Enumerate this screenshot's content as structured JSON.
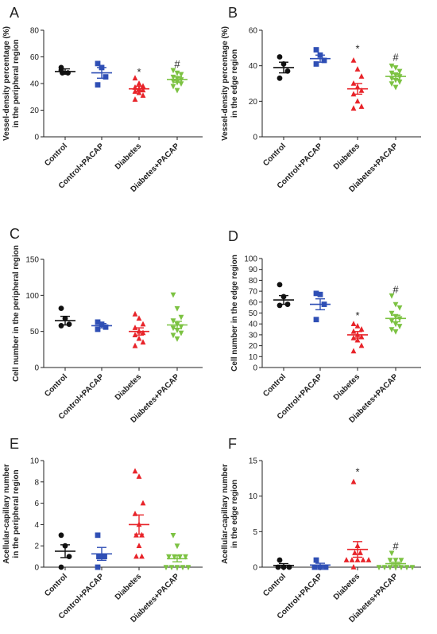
{
  "colors": {
    "Control": "#111111",
    "Control+PACAP": "#2f4fb5",
    "Diabetes": "#e8242a",
    "Diabetes+PACAP": "#7cc242"
  },
  "chart_data": [
    {
      "panel": "A",
      "type": "scatter",
      "categories": [
        "Control",
        "Control+PACAP",
        "Diabetes",
        "Diabetes+PACAP"
      ],
      "ylabel_lines": [
        "Vessel-density percentage (%)",
        "in the peripheral region"
      ],
      "ylim": [
        0,
        80
      ],
      "yticks": [
        0,
        20,
        40,
        60,
        80
      ],
      "groups": [
        {
          "name": "Control",
          "marker": "circle",
          "mean": 49,
          "sem": 2,
          "values": [
            52,
            48,
            48,
            50
          ]
        },
        {
          "name": "Control+PACAP",
          "marker": "square",
          "mean": 48,
          "sem": 4,
          "values": [
            55,
            52,
            45,
            39
          ]
        },
        {
          "name": "Diabetes",
          "marker": "triangle-up",
          "mean": 36,
          "sem": 2,
          "values": [
            44,
            40,
            38,
            37,
            36,
            35,
            34,
            33,
            31,
            28
          ]
        },
        {
          "name": "Diabetes+PACAP",
          "marker": "triangle-down",
          "mean": 43,
          "sem": 2,
          "values": [
            50,
            48,
            47,
            45,
            44,
            43,
            42,
            41,
            40,
            38,
            35
          ]
        }
      ],
      "annotations": [
        {
          "group": "Diabetes",
          "text": "*",
          "y": 49
        },
        {
          "group": "Diabetes+PACAP",
          "text": "#",
          "y": 55
        }
      ]
    },
    {
      "panel": "B",
      "type": "scatter",
      "categories": [
        "Control",
        "Control+PACAP",
        "Diabetes",
        "Diabetes+PACAP"
      ],
      "ylabel_lines": [
        "Vessel-density percentage (%)",
        "in the edge region"
      ],
      "ylim": [
        0,
        60
      ],
      "yticks": [
        0,
        20,
        40,
        60
      ],
      "groups": [
        {
          "name": "Control",
          "marker": "circle",
          "mean": 39,
          "sem": 3,
          "values": [
            45,
            41,
            37,
            33
          ]
        },
        {
          "name": "Control+PACAP",
          "marker": "square",
          "mean": 44,
          "sem": 2,
          "values": [
            49,
            46,
            43,
            41
          ]
        },
        {
          "name": "Diabetes",
          "marker": "triangle-up",
          "mean": 27,
          "sem": 3,
          "values": [
            43,
            38,
            34,
            30,
            28,
            26,
            24,
            20,
            17,
            16
          ]
        },
        {
          "name": "Diabetes+PACAP",
          "marker": "triangle-down",
          "mean": 34,
          "sem": 1.5,
          "values": [
            40,
            39,
            37,
            36,
            35,
            34,
            33,
            32,
            31,
            30,
            28
          ]
        }
      ],
      "annotations": [
        {
          "group": "Diabetes",
          "text": "*",
          "y": 50
        },
        {
          "group": "Diabetes+PACAP",
          "text": "#",
          "y": 45
        }
      ]
    },
    {
      "panel": "C",
      "type": "scatter",
      "categories": [
        "Control",
        "Control+PACAP",
        "Diabetes",
        "Diabetes+PACAP"
      ],
      "ylabel_lines": [
        "Cell number  in the peripheral region"
      ],
      "ylim": [
        0,
        150
      ],
      "yticks": [
        0,
        50,
        100,
        150
      ],
      "groups": [
        {
          "name": "Control",
          "marker": "circle",
          "mean": 65,
          "sem": 6,
          "values": [
            82,
            68,
            60,
            58
          ]
        },
        {
          "name": "Control+PACAP",
          "marker": "square",
          "mean": 58,
          "sem": 3,
          "values": [
            63,
            60,
            56,
            53
          ]
        },
        {
          "name": "Diabetes",
          "marker": "triangle-up",
          "mean": 50,
          "sem": 5,
          "values": [
            74,
            68,
            60,
            55,
            50,
            48,
            45,
            40,
            35,
            30
          ]
        },
        {
          "name": "Diabetes+PACAP",
          "marker": "triangle-down",
          "mean": 59,
          "sem": 5,
          "values": [
            101,
            82,
            70,
            65,
            60,
            57,
            55,
            52,
            48,
            45,
            40
          ]
        }
      ],
      "annotations": []
    },
    {
      "panel": "D",
      "type": "scatter",
      "categories": [
        "Control",
        "Control+PACAP",
        "Diabetes",
        "Diabetes+PACAP"
      ],
      "ylabel_lines": [
        "Cell number  in the edge region"
      ],
      "ylim": [
        0,
        100
      ],
      "yticks": [
        0,
        10,
        20,
        30,
        40,
        50,
        60,
        70,
        80,
        90,
        100
      ],
      "groups": [
        {
          "name": "Control",
          "marker": "circle",
          "mean": 62,
          "sem": 4,
          "values": [
            76,
            65,
            58,
            57
          ]
        },
        {
          "name": "Control+PACAP",
          "marker": "square",
          "mean": 58,
          "sem": 5,
          "values": [
            68,
            67,
            58,
            44
          ]
        },
        {
          "name": "Diabetes",
          "marker": "triangle-up",
          "mean": 30,
          "sem": 3,
          "values": [
            40,
            38,
            35,
            33,
            30,
            28,
            27,
            25,
            20,
            15
          ]
        },
        {
          "name": "Diabetes+PACAP",
          "marker": "triangle-down",
          "mean": 45,
          "sem": 3,
          "values": [
            66,
            58,
            55,
            50,
            47,
            45,
            43,
            40,
            38,
            35,
            33
          ]
        }
      ],
      "annotations": [
        {
          "group": "Diabetes",
          "text": "*",
          "y": 48
        },
        {
          "group": "Diabetes+PACAP",
          "text": "#",
          "y": 72
        }
      ]
    },
    {
      "panel": "E",
      "type": "scatter",
      "categories": [
        "Control",
        "Control+PACAP",
        "Diabetes",
        "Diabetes+PACAP"
      ],
      "ylabel_lines": [
        "Acellular-capillary number",
        "in the peripheral region"
      ],
      "ylim": [
        0,
        10
      ],
      "yticks": [
        0,
        2,
        4,
        6,
        8,
        10
      ],
      "groups": [
        {
          "name": "Control",
          "marker": "circle",
          "mean": 1.5,
          "sem": 0.6,
          "values": [
            3,
            2,
            1,
            0
          ]
        },
        {
          "name": "Control+PACAP",
          "marker": "square",
          "mean": 1.25,
          "sem": 0.6,
          "values": [
            3,
            1,
            1,
            0
          ]
        },
        {
          "name": "Diabetes",
          "marker": "triangle-up",
          "mean": 4,
          "sem": 0.9,
          "values": [
            9,
            8.5,
            6,
            5,
            4,
            3,
            3,
            2,
            1,
            1
          ]
        },
        {
          "name": "Diabetes+PACAP",
          "marker": "triangle-down",
          "mean": 0.8,
          "sem": 0.3,
          "values": [
            3,
            2,
            1,
            1,
            1,
            1,
            0,
            0,
            0,
            0,
            0
          ]
        }
      ],
      "annotations": []
    },
    {
      "panel": "F",
      "type": "scatter",
      "categories": [
        "Control",
        "Control+PACAP",
        "Diabetes",
        "Diabetes+PACAP"
      ],
      "ylabel_lines": [
        "Acellular-capillary number",
        "in the edge region"
      ],
      "ylim": [
        0,
        15
      ],
      "yticks": [
        0,
        5,
        10,
        15
      ],
      "groups": [
        {
          "name": "Control",
          "marker": "circle",
          "mean": 0.25,
          "sem": 0.25,
          "values": [
            1,
            0,
            0,
            0
          ]
        },
        {
          "name": "Control+PACAP",
          "marker": "square",
          "mean": 0.3,
          "sem": 0.25,
          "values": [
            1,
            0,
            0,
            0
          ]
        },
        {
          "name": "Diabetes",
          "marker": "triangle-up",
          "mean": 2.5,
          "sem": 1.1,
          "values": [
            12,
            3,
            2,
            2,
            1,
            1,
            1,
            1,
            1,
            0
          ]
        },
        {
          "name": "Diabetes+PACAP",
          "marker": "triangle-down",
          "mean": 0.5,
          "sem": 0.2,
          "values": [
            2,
            1,
            1,
            1,
            0,
            0,
            0,
            0,
            0,
            0,
            0
          ]
        }
      ],
      "annotations": [
        {
          "group": "Diabetes",
          "text": "*",
          "y": 13.5
        },
        {
          "group": "Diabetes+PACAP",
          "text": "#",
          "y": 3
        }
      ]
    }
  ]
}
